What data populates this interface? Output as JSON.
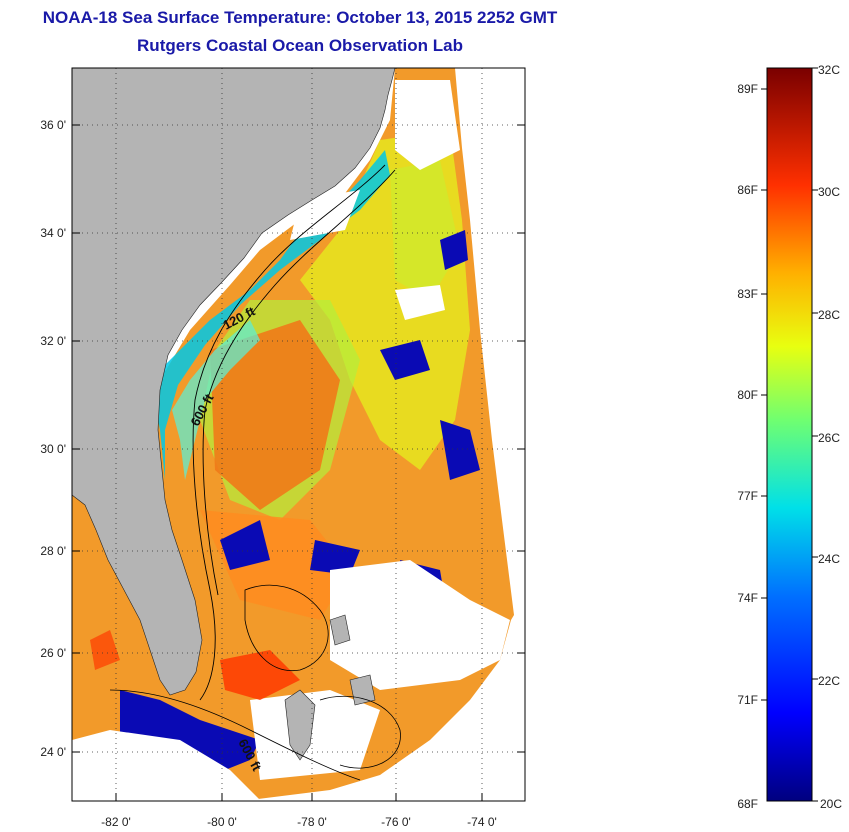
{
  "header": {
    "title": "NOAA-18 Sea Surface Temperature:  October 13, 2015 2252 GMT",
    "subtitle": "Rutgers Coastal Ocean Observation Lab"
  },
  "map": {
    "lat_labels": [
      "36 0'",
      "34 0'",
      "32 0'",
      "30 0'",
      "28 0'",
      "26 0'",
      "24 0'"
    ],
    "lon_labels": [
      "-82 0'",
      "-80 0'",
      "-78 0'",
      "-76 0'",
      "-74 0'"
    ],
    "contour_labels": [
      "120 ft",
      "600 ft",
      "600 ft"
    ],
    "colors": {
      "land": "#b4b4b4",
      "cloud": "#ffffff",
      "frame": "#000000"
    }
  },
  "colorbar": {
    "celsius_labels": [
      "32C",
      "30C",
      "28C",
      "26C",
      "24C",
      "22C",
      "20C"
    ],
    "fahrenheit_labels": [
      "89F",
      "86F",
      "83F",
      "80F",
      "77F",
      "74F",
      "71F",
      "68F"
    ],
    "range_c": [
      20,
      32
    ]
  }
}
